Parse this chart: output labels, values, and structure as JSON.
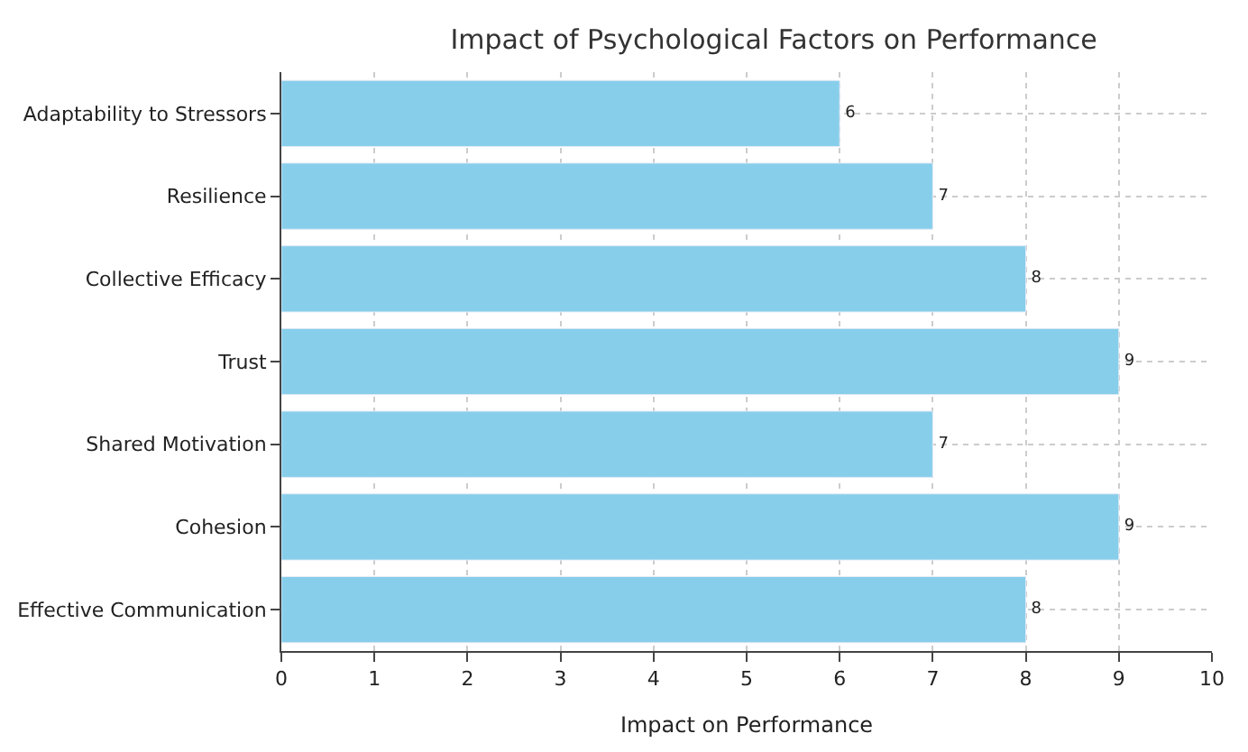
{
  "chart_data": {
    "type": "bar",
    "orientation": "horizontal",
    "title": "Impact of Psychological Factors on Performance",
    "xlabel": "Impact on Performance",
    "categories": [
      "Adaptability to Stressors",
      "Resilience",
      "Collective Efficacy",
      "Trust",
      "Shared Motivation",
      "Cohesion",
      "Effective Communication"
    ],
    "values": [
      6,
      7,
      8,
      9,
      7,
      9,
      8
    ],
    "color": "#87ceeb",
    "xlim": [
      0,
      10
    ],
    "xticks": [
      0,
      1,
      2,
      3,
      4,
      5,
      6,
      7,
      8,
      9,
      10
    ],
    "grid": true,
    "data_labels": true
  }
}
